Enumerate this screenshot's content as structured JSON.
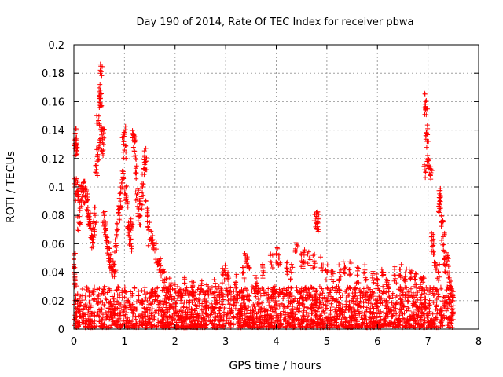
{
  "chart_data": {
    "type": "scatter",
    "title": "Day 190 of 2014, Rate Of TEC Index for receiver pbwa",
    "xlabel": "GPS time / hours",
    "ylabel": "ROTI / TECUs",
    "xlim": [
      0,
      8
    ],
    "ylim": [
      0,
      0.2
    ],
    "x_ticks": [
      0,
      1,
      2,
      3,
      4,
      5,
      6,
      7,
      8
    ],
    "y_ticks": [
      0,
      0.02,
      0.04,
      0.06,
      0.08,
      0.1,
      0.12,
      0.14,
      0.16,
      0.18,
      0.2
    ],
    "x_tick_labels": [
      "0",
      "1",
      "2",
      "3",
      "4",
      "5",
      "6",
      "7",
      "8"
    ],
    "y_tick_labels": [
      "0",
      "0.02",
      "0.04",
      "0.06",
      "0.08",
      "0.1",
      "0.12",
      "0.14",
      "0.16",
      "0.18",
      "0.2"
    ],
    "grid": true,
    "marker": "+",
    "color": "#ff0000",
    "series": [
      {
        "name": "ROTI",
        "points": [
          [
            0.0,
            0.049
          ],
          [
            0.0,
            0.04
          ],
          [
            0.02,
            0.036
          ],
          [
            0.02,
            0.133
          ],
          [
            0.03,
            0.135
          ],
          [
            0.03,
            0.127
          ],
          [
            0.05,
            0.128
          ],
          [
            0.04,
            0.105
          ],
          [
            0.06,
            0.095
          ],
          [
            0.08,
            0.093
          ],
          [
            0.1,
            0.075
          ],
          [
            0.12,
            0.085
          ],
          [
            0.15,
            0.097
          ],
          [
            0.18,
            0.1
          ],
          [
            0.2,
            0.104
          ],
          [
            0.22,
            0.093
          ],
          [
            0.25,
            0.09
          ],
          [
            0.28,
            0.08
          ],
          [
            0.3,
            0.078
          ],
          [
            0.33,
            0.071
          ],
          [
            0.35,
            0.066
          ],
          [
            0.38,
            0.063
          ],
          [
            0.4,
            0.07
          ],
          [
            0.42,
            0.08
          ],
          [
            0.45,
            0.11
          ],
          [
            0.47,
            0.122
          ],
          [
            0.48,
            0.145
          ],
          [
            0.5,
            0.128
          ],
          [
            0.52,
            0.168
          ],
          [
            0.52,
            0.162
          ],
          [
            0.52,
            0.158
          ],
          [
            0.54,
            0.181
          ],
          [
            0.55,
            0.14
          ],
          [
            0.57,
            0.135
          ],
          [
            0.58,
            0.126
          ],
          [
            0.6,
            0.08
          ],
          [
            0.62,
            0.07
          ],
          [
            0.65,
            0.062
          ],
          [
            0.68,
            0.057
          ],
          [
            0.7,
            0.052
          ],
          [
            0.72,
            0.048
          ],
          [
            0.75,
            0.045
          ],
          [
            0.78,
            0.042
          ],
          [
            0.8,
            0.045
          ],
          [
            0.83,
            0.06
          ],
          [
            0.85,
            0.07
          ],
          [
            0.88,
            0.082
          ],
          [
            0.9,
            0.08
          ],
          [
            0.92,
            0.09
          ],
          [
            0.95,
            0.1
          ],
          [
            0.97,
            0.107
          ],
          [
            0.98,
            0.13
          ],
          [
            1.0,
            0.126
          ],
          [
            1.0,
            0.137
          ],
          [
            1.02,
            0.095
          ],
          [
            1.05,
            0.088
          ],
          [
            1.08,
            0.075
          ],
          [
            1.1,
            0.068
          ],
          [
            1.12,
            0.06
          ],
          [
            1.15,
            0.072
          ],
          [
            1.18,
            0.135
          ],
          [
            1.2,
            0.132
          ],
          [
            1.2,
            0.125
          ],
          [
            1.22,
            0.11
          ],
          [
            1.25,
            0.095
          ],
          [
            1.28,
            0.085
          ],
          [
            1.3,
            0.079
          ],
          [
            1.32,
            0.09
          ],
          [
            1.35,
            0.1
          ],
          [
            1.38,
            0.113
          ],
          [
            1.4,
            0.122
          ],
          [
            1.42,
            0.118
          ],
          [
            1.45,
            0.085
          ],
          [
            1.48,
            0.07
          ],
          [
            1.5,
            0.063
          ],
          [
            1.55,
            0.06
          ],
          [
            1.6,
            0.055
          ],
          [
            1.65,
            0.048
          ],
          [
            1.7,
            0.045
          ],
          [
            1.75,
            0.04
          ],
          [
            1.8,
            0.035
          ],
          [
            1.9,
            0.03
          ],
          [
            2.0,
            0.027
          ],
          [
            2.1,
            0.028
          ],
          [
            2.2,
            0.032
          ],
          [
            2.35,
            0.03
          ],
          [
            2.5,
            0.028
          ],
          [
            2.65,
            0.026
          ],
          [
            2.8,
            0.03
          ],
          [
            2.95,
            0.038
          ],
          [
            3.0,
            0.04
          ],
          [
            3.05,
            0.037
          ],
          [
            3.2,
            0.033
          ],
          [
            3.35,
            0.04
          ],
          [
            3.4,
            0.048
          ],
          [
            3.45,
            0.045
          ],
          [
            3.6,
            0.032
          ],
          [
            3.75,
            0.04
          ],
          [
            3.9,
            0.047
          ],
          [
            4.0,
            0.053
          ],
          [
            4.05,
            0.05
          ],
          [
            4.2,
            0.043
          ],
          [
            4.3,
            0.04
          ],
          [
            4.4,
            0.055
          ],
          [
            4.5,
            0.048
          ],
          [
            4.55,
            0.052
          ],
          [
            4.65,
            0.05
          ],
          [
            4.75,
            0.048
          ],
          [
            4.78,
            0.078
          ],
          [
            4.8,
            0.081
          ],
          [
            4.82,
            0.076
          ],
          [
            4.8,
            0.071
          ],
          [
            4.9,
            0.045
          ],
          [
            5.0,
            0.04
          ],
          [
            5.1,
            0.035
          ],
          [
            5.25,
            0.04
          ],
          [
            5.35,
            0.045
          ],
          [
            5.45,
            0.042
          ],
          [
            5.6,
            0.038
          ],
          [
            5.75,
            0.04
          ],
          [
            5.9,
            0.036
          ],
          [
            6.0,
            0.035
          ],
          [
            6.1,
            0.04
          ],
          [
            6.2,
            0.034
          ],
          [
            6.35,
            0.038
          ],
          [
            6.45,
            0.042
          ],
          [
            6.55,
            0.037
          ],
          [
            6.65,
            0.04
          ],
          [
            6.75,
            0.035
          ],
          [
            6.85,
            0.03
          ],
          [
            6.9,
            0.033
          ],
          [
            6.93,
            0.112
          ],
          [
            6.95,
            0.16
          ],
          [
            6.96,
            0.155
          ],
          [
            6.97,
            0.138
          ],
          [
            6.98,
            0.132
          ],
          [
            7.0,
            0.12
          ],
          [
            7.02,
            0.115
          ],
          [
            7.05,
            0.108
          ],
          [
            7.08,
            0.062
          ],
          [
            7.1,
            0.055
          ],
          [
            7.15,
            0.045
          ],
          [
            7.2,
            0.04
          ],
          [
            7.22,
            0.088
          ],
          [
            7.24,
            0.094
          ],
          [
            7.25,
            0.085
          ],
          [
            7.27,
            0.075
          ],
          [
            7.3,
            0.065
          ],
          [
            7.32,
            0.05
          ],
          [
            7.35,
            0.045
          ],
          [
            7.38,
            0.048
          ],
          [
            7.4,
            0.036
          ],
          [
            7.45,
            0.03
          ],
          [
            7.48,
            0.02
          ],
          [
            7.5,
            0.012
          ]
        ],
        "baseline_band": {
          "x_range": [
            0.0,
            7.5
          ],
          "typical_range": [
            0.001,
            0.03
          ],
          "note_range_label": "dense band near 0.005-0.025"
        }
      }
    ]
  }
}
